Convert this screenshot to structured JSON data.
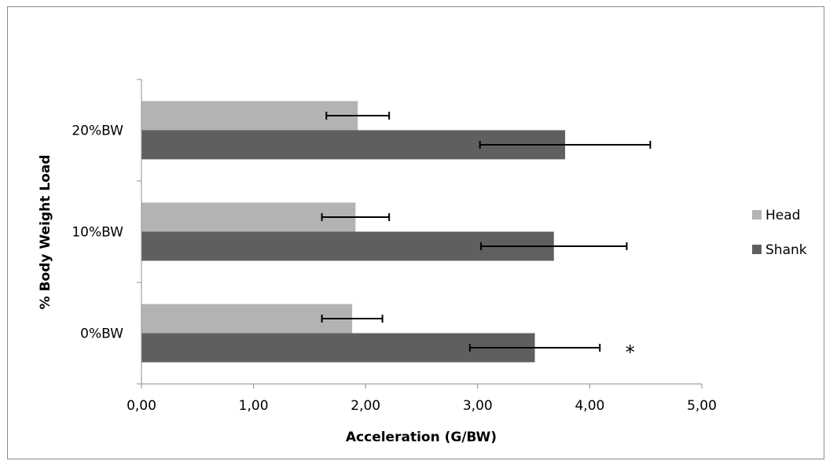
{
  "chart_data": {
    "type": "bar",
    "orientation": "horizontal",
    "categories": [
      "0%BW",
      "10%BW",
      "20%BW"
    ],
    "series": [
      {
        "name": "Head",
        "color": "#b3b3b3",
        "values": [
          1.88,
          1.91,
          1.93
        ],
        "error": [
          0.27,
          0.3,
          0.28
        ]
      },
      {
        "name": "Shank",
        "color": "#5f5f5f",
        "values": [
          3.51,
          3.68,
          3.78
        ],
        "error": [
          0.58,
          0.65,
          0.76
        ]
      }
    ],
    "xlabel": "Acceleration (G/BW)",
    "ylabel": "% Body Weight Load",
    "xlim": [
      0,
      5
    ],
    "xticks": [
      "0,00",
      "1,00",
      "2,00",
      "3,00",
      "4,00",
      "5,00"
    ],
    "legend_position": "right",
    "grid": false,
    "annotations": [
      {
        "text": "*",
        "category": "0%BW",
        "series": "Shank",
        "x": 4.36
      }
    ]
  }
}
